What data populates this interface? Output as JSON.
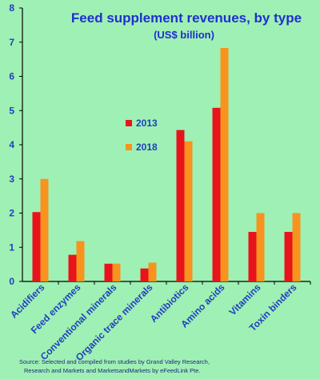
{
  "chart_data": {
    "type": "bar",
    "title": "Feed supplement revenues, by type",
    "subtitle": "(US$ billion)",
    "categories": [
      "Acidifiers",
      "Feed enzymes",
      "Conventional minerals",
      "Organic trace minerals",
      "Antibiotics",
      "Amino acids",
      "Vitamins",
      "Toxin binders"
    ],
    "series": [
      {
        "name": "2013",
        "color": "#e8141c",
        "values": [
          2.03,
          0.78,
          0.52,
          0.38,
          4.43,
          5.08,
          1.45,
          1.45
        ]
      },
      {
        "name": "2018",
        "color": "#f7931e",
        "values": [
          3.0,
          1.18,
          0.52,
          0.55,
          4.1,
          6.83,
          2.0,
          2.0
        ]
      }
    ],
    "ylim": [
      0,
      8
    ],
    "yticks": [
      "0",
      "1",
      "2",
      "3",
      "4",
      "5",
      "6",
      "7",
      "8"
    ],
    "grid": false,
    "legend_position": "center"
  },
  "source": {
    "line1": "Source: Selected and compiled from studies by Grand Valley Research,",
    "line2": "Research and Markets and MarketsandMarkets by eFeedLink Pte."
  }
}
